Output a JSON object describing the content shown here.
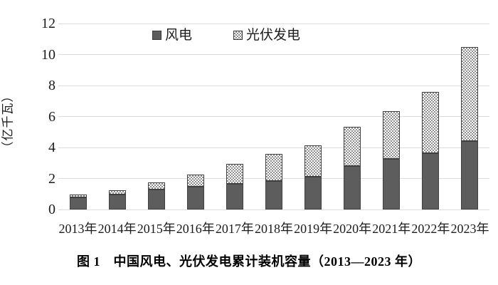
{
  "figure_caption": "图 1　中国风电、光伏发电累计装机容量（2013—2023 年）",
  "chart_data": {
    "type": "bar",
    "stacked": true,
    "title": "",
    "xlabel": "",
    "ylabel": "（亿千瓦）",
    "categories": [
      "2013年",
      "2014年",
      "2015年",
      "2016年",
      "2017年",
      "2018年",
      "2019年",
      "2020年",
      "2021年",
      "2022年",
      "2023年"
    ],
    "series": [
      {
        "key": "wind",
        "name": "风电",
        "pattern": "solid",
        "color": "#5d5d5d",
        "values": [
          0.77,
          0.96,
          1.3,
          1.49,
          1.64,
          1.84,
          2.1,
          2.81,
          3.28,
          3.65,
          4.41
        ]
      },
      {
        "key": "solar",
        "name": "光伏发电",
        "pattern": "checker",
        "color": "#8f8f8f",
        "values": [
          0.19,
          0.28,
          0.43,
          0.77,
          1.3,
          1.74,
          2.04,
          2.53,
          3.06,
          3.93,
          6.09
        ]
      }
    ],
    "ylim": [
      0,
      12
    ],
    "yticks": [
      0,
      2,
      4,
      6,
      8,
      10,
      12
    ],
    "grid": true,
    "legend_position": "top"
  },
  "colors": {
    "grid": "#dcdcdc",
    "bar_border": "#3f3f3f",
    "text": "#1c1c1c"
  }
}
